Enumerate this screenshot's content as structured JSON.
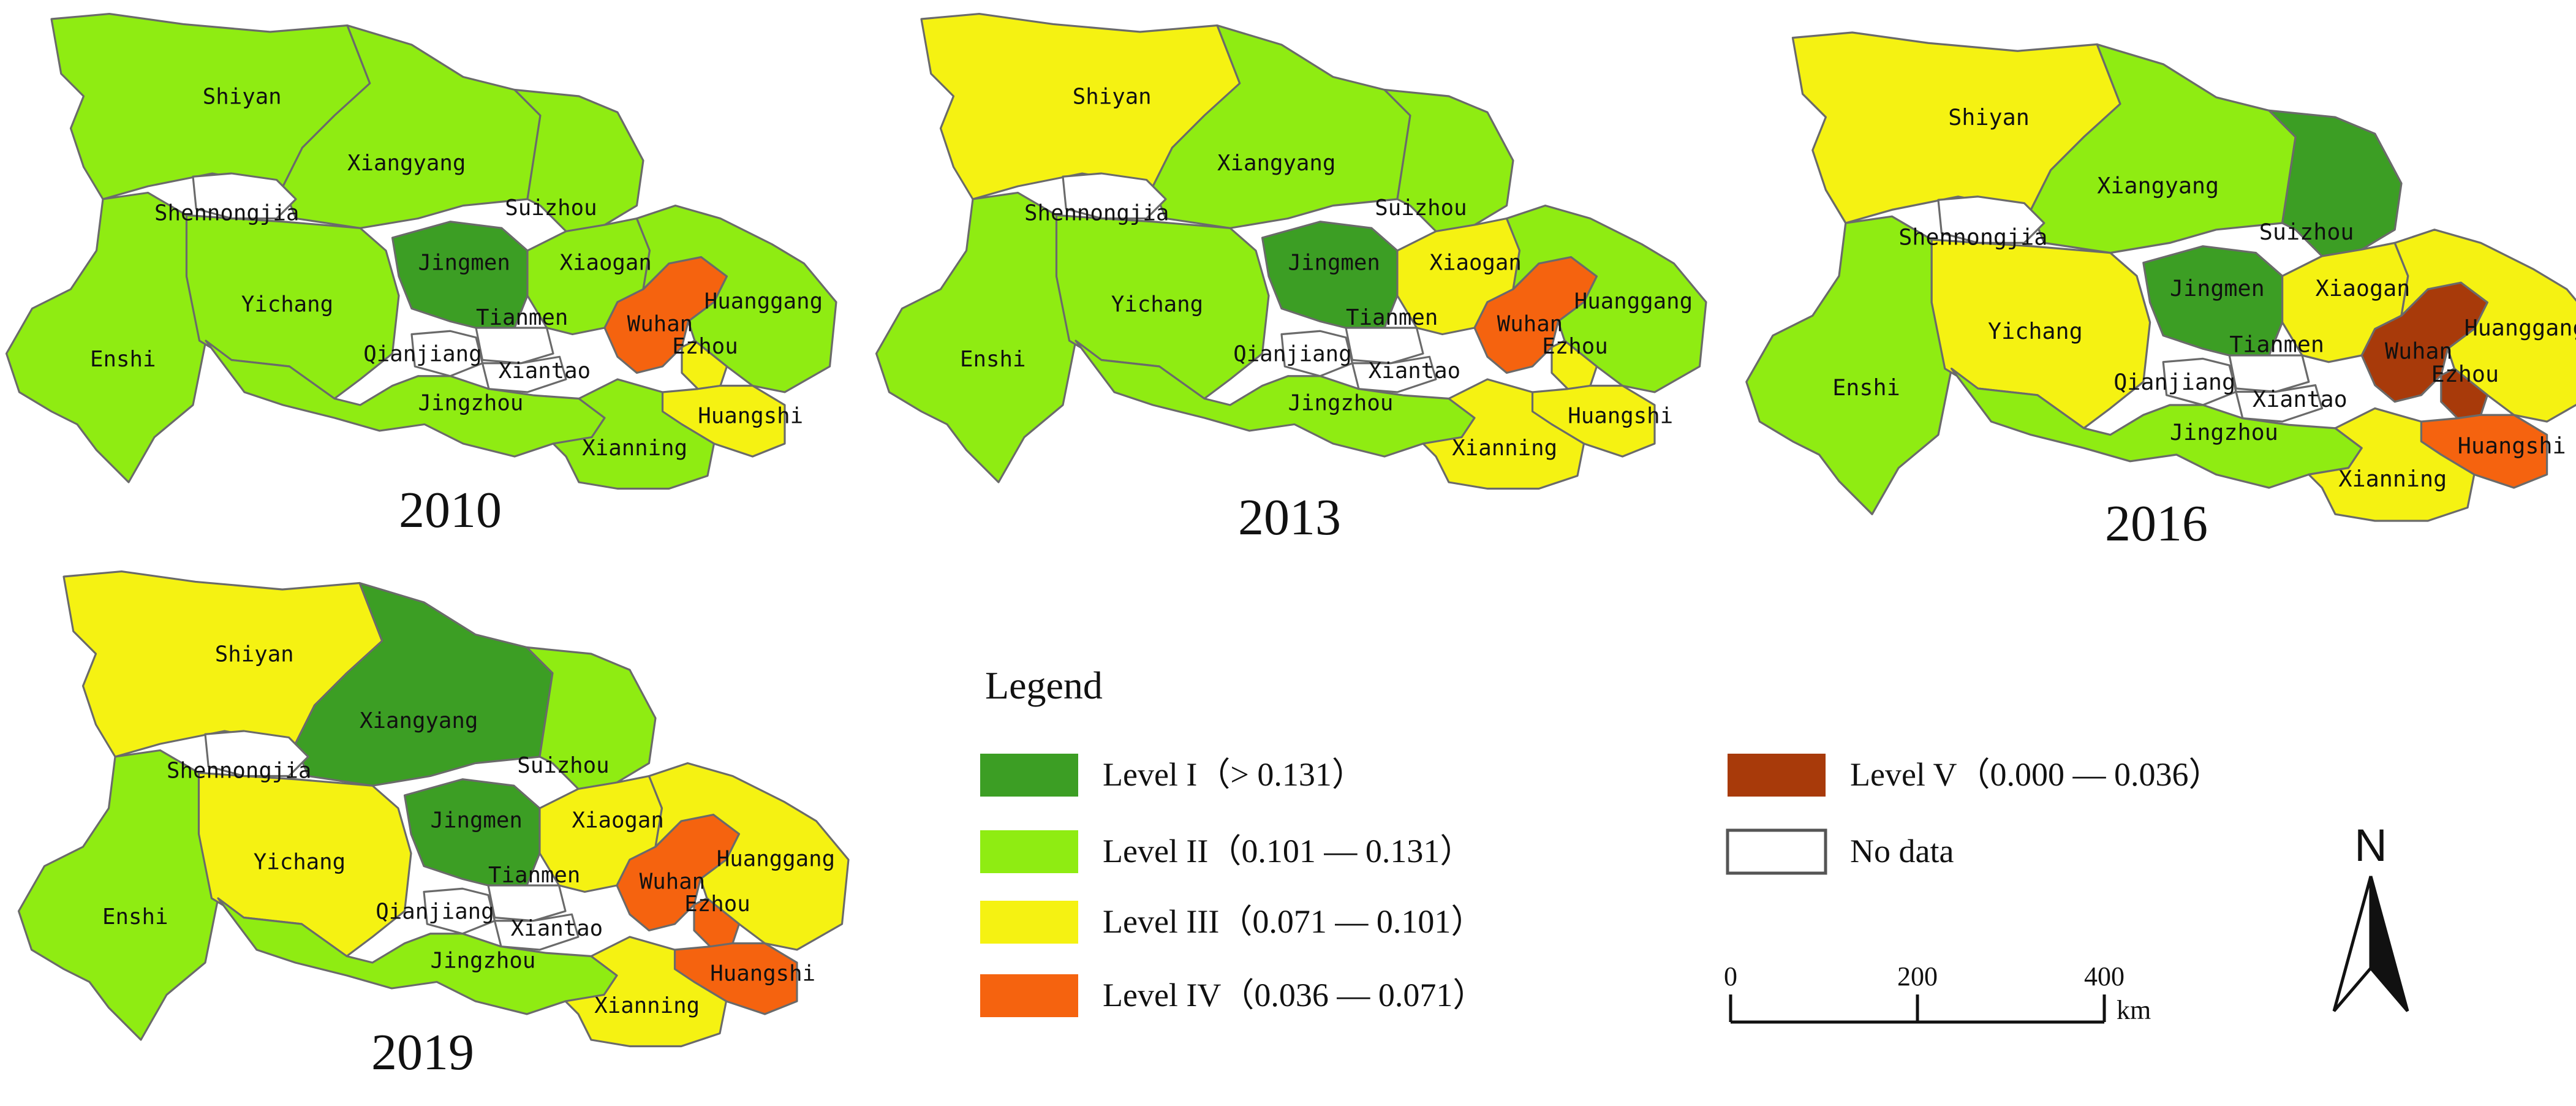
{
  "level_colors": {
    "I": "#3c9e24",
    "II": "#8fec12",
    "III": "#f5f212",
    "IV": "#f5630f",
    "V": "#a83a0a",
    "none": "#ffffff"
  },
  "maps": [
    {
      "year": "2010",
      "cities": [
        {
          "name": "Shiyan",
          "level": "II"
        },
        {
          "name": "Xiangyang",
          "level": "II"
        },
        {
          "name": "Suizhou",
          "level": "II"
        },
        {
          "name": "Shennongjia",
          "level": "none"
        },
        {
          "name": "Enshi",
          "level": "II"
        },
        {
          "name": "Yichang",
          "level": "II"
        },
        {
          "name": "Jingmen",
          "level": "I"
        },
        {
          "name": "Xiaogan",
          "level": "II"
        },
        {
          "name": "Tianmen",
          "level": "none"
        },
        {
          "name": "Qianjiang",
          "level": "none"
        },
        {
          "name": "Xiantao",
          "level": "none"
        },
        {
          "name": "Jingzhou",
          "level": "II"
        },
        {
          "name": "Wuhan",
          "level": "IV"
        },
        {
          "name": "Huanggang",
          "level": "II"
        },
        {
          "name": "Ezhou",
          "level": "III"
        },
        {
          "name": "Huangshi",
          "level": "III"
        },
        {
          "name": "Xianning",
          "level": "II"
        }
      ]
    },
    {
      "year": "2013",
      "cities": [
        {
          "name": "Shiyan",
          "level": "III"
        },
        {
          "name": "Xiangyang",
          "level": "II"
        },
        {
          "name": "Suizhou",
          "level": "II"
        },
        {
          "name": "Shennongjia",
          "level": "none"
        },
        {
          "name": "Enshi",
          "level": "II"
        },
        {
          "name": "Yichang",
          "level": "II"
        },
        {
          "name": "Jingmen",
          "level": "I"
        },
        {
          "name": "Xiaogan",
          "level": "III"
        },
        {
          "name": "Tianmen",
          "level": "none"
        },
        {
          "name": "Qianjiang",
          "level": "none"
        },
        {
          "name": "Xiantao",
          "level": "none"
        },
        {
          "name": "Jingzhou",
          "level": "II"
        },
        {
          "name": "Wuhan",
          "level": "IV"
        },
        {
          "name": "Huanggang",
          "level": "II"
        },
        {
          "name": "Ezhou",
          "level": "III"
        },
        {
          "name": "Huangshi",
          "level": "III"
        },
        {
          "name": "Xianning",
          "level": "III"
        }
      ]
    },
    {
      "year": "2016",
      "cities": [
        {
          "name": "Shiyan",
          "level": "III"
        },
        {
          "name": "Xiangyang",
          "level": "II"
        },
        {
          "name": "Suizhou",
          "level": "I"
        },
        {
          "name": "Shennongjia",
          "level": "none"
        },
        {
          "name": "Enshi",
          "level": "II"
        },
        {
          "name": "Yichang",
          "level": "III"
        },
        {
          "name": "Jingmen",
          "level": "I"
        },
        {
          "name": "Xiaogan",
          "level": "III"
        },
        {
          "name": "Tianmen",
          "level": "none"
        },
        {
          "name": "Qianjiang",
          "level": "none"
        },
        {
          "name": "Xiantao",
          "level": "none"
        },
        {
          "name": "Jingzhou",
          "level": "II"
        },
        {
          "name": "Wuhan",
          "level": "V"
        },
        {
          "name": "Huanggang",
          "level": "III"
        },
        {
          "name": "Ezhou",
          "level": "V"
        },
        {
          "name": "Huangshi",
          "level": "IV"
        },
        {
          "name": "Xianning",
          "level": "III"
        }
      ]
    },
    {
      "year": "2019",
      "cities": [
        {
          "name": "Shiyan",
          "level": "III"
        },
        {
          "name": "Xiangyang",
          "level": "I"
        },
        {
          "name": "Suizhou",
          "level": "II"
        },
        {
          "name": "Shennongjia",
          "level": "none"
        },
        {
          "name": "Enshi",
          "level": "II"
        },
        {
          "name": "Yichang",
          "level": "III"
        },
        {
          "name": "Jingmen",
          "level": "I"
        },
        {
          "name": "Xiaogan",
          "level": "III"
        },
        {
          "name": "Tianmen",
          "level": "none"
        },
        {
          "name": "Qianjiang",
          "level": "none"
        },
        {
          "name": "Xiantao",
          "level": "none"
        },
        {
          "name": "Jingzhou",
          "level": "II"
        },
        {
          "name": "Wuhan",
          "level": "IV"
        },
        {
          "name": "Huanggang",
          "level": "III"
        },
        {
          "name": "Ezhou",
          "level": "IV"
        },
        {
          "name": "Huangshi",
          "level": "IV"
        },
        {
          "name": "Xianning",
          "level": "III"
        }
      ]
    }
  ],
  "legend": {
    "title": "Legend",
    "items": [
      {
        "label": "Level I（> 0.131）",
        "level": "I"
      },
      {
        "label": "Level II（0.101 — 0.131）",
        "level": "II"
      },
      {
        "label": "Level III（0.071 — 0.101）",
        "level": "III"
      },
      {
        "label": "Level IV（0.036 — 0.071）",
        "level": "IV"
      },
      {
        "label": "Level V（0.000 — 0.036）",
        "level": "V"
      },
      {
        "label": "No data",
        "level": "none"
      }
    ]
  },
  "scale_bar": {
    "ticks": [
      "0",
      "200",
      "400"
    ],
    "unit": "km"
  },
  "north_arrow": {
    "label": "N",
    "icon": "north-arrow-icon"
  }
}
